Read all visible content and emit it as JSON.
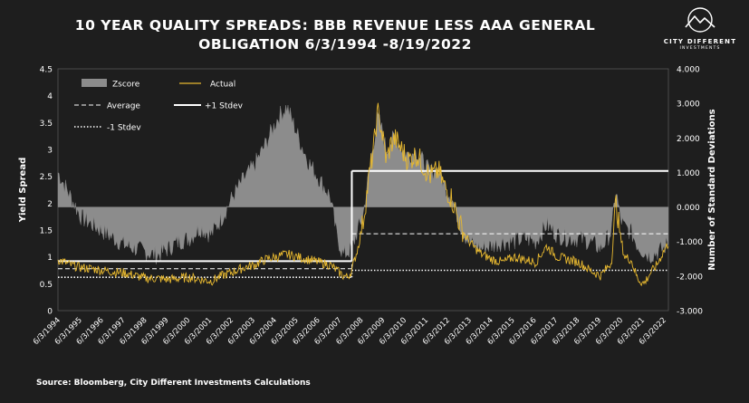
{
  "title": "10 YEAR QUALITY SPREADS: BBB REVENUE LESS AAA GENERAL OBLIGATION 6/3/1994 -8/19/2022",
  "logo": {
    "name": "CITY DIFFERENT",
    "sub": "INVESTMENTS"
  },
  "source": "Source: Bloomberg, City Different Investments Calculations",
  "colors": {
    "background": "#1e1e1e",
    "zscore": "#8c8c8c",
    "actual": "#e8b930",
    "lines": "#ffffff"
  },
  "chart_data": {
    "type": "area",
    "title": "10 YEAR QUALITY SPREADS: BBB REVENUE LESS AAA GENERAL OBLIGATION 6/3/1994 -8/19/2022",
    "ylabel": "Yield Spread",
    "y2label": "Number of Standard Deviations",
    "ylim": [
      0,
      4.5
    ],
    "y2lim": [
      -3.0,
      4.0
    ],
    "y_ticks": [
      "0",
      "0.5",
      "1",
      "1.5",
      "2",
      "2.5",
      "3",
      "3.5",
      "4",
      "4.5"
    ],
    "y2_ticks": [
      "-3.000",
      "-2.000",
      "-1.000",
      "0.000",
      "1.000",
      "2.000",
      "3.000",
      "4.000"
    ],
    "x_ticks": [
      "6/3/1994",
      "6/3/1995",
      "6/3/1996",
      "6/3/1997",
      "6/3/1998",
      "6/3/1999",
      "6/3/2000",
      "6/3/2001",
      "6/3/2002",
      "6/3/2003",
      "6/3/2004",
      "6/3/2005",
      "6/3/2006",
      "6/3/2007",
      "6/3/2008",
      "6/3/2009",
      "6/3/2010",
      "6/3/2011",
      "6/3/2012",
      "6/3/2013",
      "6/3/2014",
      "6/3/2015",
      "6/3/2016",
      "6/3/2017",
      "6/3/2018",
      "6/3/2019",
      "6/3/2020",
      "6/3/2021",
      "6/3/2022"
    ],
    "legend": {
      "placement": "top-left",
      "items": [
        {
          "label": "Zscore",
          "style": "area"
        },
        {
          "label": "Actual",
          "style": "line"
        },
        {
          "label": "Average",
          "style": "dashed"
        },
        {
          "label": "+1 Stdev",
          "style": "solid"
        },
        {
          "label": "-1 Stdev",
          "style": "dotted"
        }
      ]
    },
    "regimes": [
      {
        "start": 1994.42,
        "end": 2008.0,
        "average": 0.78,
        "plus1": 0.92,
        "minus1": 0.62
      },
      {
        "start": 2008.0,
        "end": 2022.63,
        "average": 1.43,
        "plus1": 2.6,
        "minus1": 0.75
      }
    ],
    "series": [
      {
        "name": "Actual",
        "axis": "left",
        "x": [
          1994.42,
          1995.0,
          1995.5,
          1996.0,
          1996.5,
          1997.0,
          1997.5,
          1998.0,
          1998.5,
          1999.0,
          1999.5,
          2000.0,
          2000.5,
          2001.0,
          2001.5,
          2002.0,
          2002.5,
          2003.0,
          2003.5,
          2004.0,
          2004.5,
          2005.0,
          2005.5,
          2006.0,
          2006.5,
          2007.0,
          2007.3,
          2007.6,
          2007.8,
          2008.0,
          2008.3,
          2008.5,
          2008.8,
          2009.0,
          2009.2,
          2009.4,
          2009.6,
          2009.8,
          2010.0,
          2010.3,
          2010.6,
          2011.0,
          2011.3,
          2011.6,
          2012.0,
          2012.3,
          2012.6,
          2013.0,
          2013.3,
          2013.6,
          2014.0,
          2014.5,
          2015.0,
          2015.5,
          2016.0,
          2016.5,
          2017.0,
          2017.5,
          2018.0,
          2018.5,
          2019.0,
          2019.5,
          2020.0,
          2020.2,
          2020.4,
          2020.6,
          2020.9,
          2021.2,
          2021.5,
          2021.8,
          2022.1,
          2022.4,
          2022.63
        ],
        "y": [
          0.95,
          0.85,
          0.8,
          0.78,
          0.75,
          0.72,
          0.7,
          0.65,
          0.6,
          0.6,
          0.58,
          0.6,
          0.62,
          0.58,
          0.55,
          0.65,
          0.72,
          0.8,
          0.85,
          0.95,
          1.0,
          1.05,
          1.0,
          0.95,
          0.9,
          0.85,
          0.75,
          0.65,
          0.62,
          0.75,
          1.2,
          1.6,
          2.5,
          3.0,
          3.7,
          3.3,
          2.8,
          3.1,
          3.2,
          3.0,
          2.8,
          2.9,
          2.7,
          2.5,
          2.6,
          2.3,
          2.1,
          1.6,
          1.35,
          1.2,
          1.05,
          0.95,
          0.9,
          1.0,
          0.95,
          0.9,
          1.2,
          1.0,
          0.95,
          0.9,
          0.75,
          0.65,
          0.9,
          2.05,
          1.4,
          1.0,
          0.95,
          0.6,
          0.5,
          0.7,
          0.85,
          1.1,
          1.25
        ]
      },
      {
        "name": "Zscore",
        "axis": "right",
        "x": [
          1994.42,
          1995.0,
          1995.5,
          1996.0,
          1996.5,
          1997.0,
          1997.5,
          1998.0,
          1998.5,
          1999.0,
          1999.5,
          2000.0,
          2000.5,
          2001.0,
          2001.5,
          2002.0,
          2002.5,
          2003.0,
          2003.5,
          2004.0,
          2004.3,
          2004.6,
          2005.0,
          2005.3,
          2005.6,
          2006.0,
          2006.5,
          2007.0,
          2007.3,
          2007.6,
          2007.8,
          2008.0,
          2008.3,
          2008.5,
          2008.8,
          2009.0,
          2009.2,
          2009.4,
          2009.6,
          2009.8,
          2010.0,
          2010.3,
          2010.6,
          2011.0,
          2011.3,
          2011.6,
          2012.0,
          2012.3,
          2012.6,
          2013.0,
          2013.3,
          2013.6,
          2014.0,
          2014.5,
          2015.0,
          2015.5,
          2016.0,
          2016.5,
          2017.0,
          2017.5,
          2018.0,
          2018.5,
          2019.0,
          2019.5,
          2020.0,
          2020.2,
          2020.4,
          2020.6,
          2020.9,
          2021.2,
          2021.5,
          2021.8,
          2022.1,
          2022.4,
          2022.63
        ],
        "y": [
          1.0,
          0.3,
          -0.3,
          -0.5,
          -0.7,
          -0.9,
          -1.1,
          -1.2,
          -1.3,
          -1.4,
          -1.2,
          -1.0,
          -0.9,
          -0.6,
          -0.8,
          -0.3,
          0.3,
          0.8,
          1.2,
          1.8,
          2.2,
          2.6,
          2.9,
          2.4,
          1.9,
          1.3,
          0.8,
          0.3,
          -0.8,
          -1.4,
          -1.3,
          -1.2,
          -0.6,
          -0.3,
          1.0,
          1.8,
          2.6,
          2.2,
          1.6,
          1.9,
          2.0,
          1.7,
          1.5,
          1.6,
          1.3,
          1.0,
          1.1,
          0.6,
          0.3,
          -0.5,
          -0.9,
          -1.1,
          -1.2,
          -1.1,
          -1.0,
          -1.0,
          -0.9,
          -1.0,
          -0.5,
          -0.8,
          -0.9,
          -0.9,
          -1.0,
          -1.2,
          -0.7,
          0.5,
          -0.3,
          -0.6,
          -0.7,
          -1.1,
          -1.3,
          -1.4,
          -1.3,
          -1.2,
          -1.0
        ]
      }
    ]
  }
}
